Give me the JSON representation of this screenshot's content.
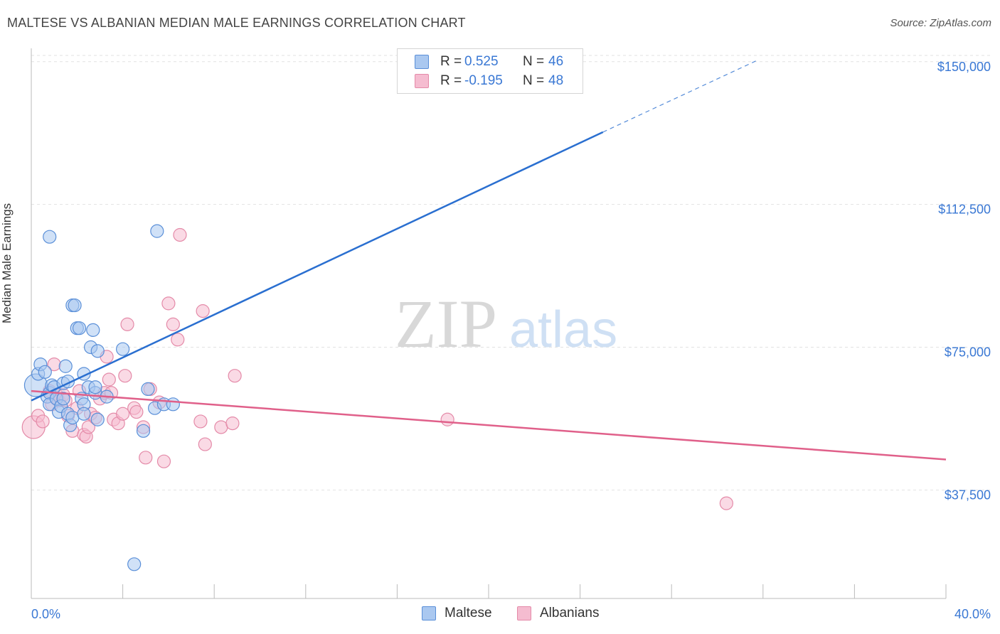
{
  "title": "MALTESE VS ALBANIAN MEDIAN MALE EARNINGS CORRELATION CHART",
  "source": "Source: ZipAtlas.com",
  "legend": {
    "rows": [
      {
        "r_label": "R =",
        "r_value": "0.525",
        "n_label": "N =",
        "n_value": "46"
      },
      {
        "r_label": "R =",
        "r_value": "-0.195",
        "n_label": "N =",
        "n_value": "48"
      }
    ]
  },
  "bottom_legend": [
    "Maltese",
    "Albanians"
  ],
  "watermark": {
    "part1": "ZIP",
    "part2": "atlas"
  },
  "colors": {
    "maltese_fill": "#aac8f0",
    "maltese_stroke": "#5a8fd8",
    "maltese_line": "#2a6fd0",
    "albanian_fill": "#f5bcd0",
    "albanian_stroke": "#e48aa8",
    "albanian_line": "#e0608a",
    "tick_label": "#3a78d4",
    "grid": "#e2e2e2"
  },
  "chart_data": {
    "type": "scatter",
    "title": "MALTESE VS ALBANIAN MEDIAN MALE EARNINGS CORRELATION CHART",
    "xlabel": "",
    "ylabel": "Median Male Earnings",
    "x_tick_labels": [
      "0.0%",
      "40.0%"
    ],
    "y_tick_labels": [
      "$37,500",
      "$75,000",
      "$112,500",
      "$150,000"
    ],
    "xlim": [
      0,
      40
    ],
    "ylim": [
      9000,
      155000
    ],
    "y_ticks": [
      37500,
      75000,
      112500,
      150000
    ],
    "series": [
      {
        "name": "Maltese",
        "R": 0.525,
        "N": 46,
        "trend": {
          "x0": 0,
          "y0": 61000,
          "x1": 25,
          "y1": 131500,
          "dash_to_x": 31.8,
          "dash_to_y": 150500
        },
        "points": [
          [
            0.2,
            65000,
            "large"
          ],
          [
            0.3,
            68000
          ],
          [
            0.4,
            70500
          ],
          [
            0.6,
            68500
          ],
          [
            0.7,
            62000
          ],
          [
            0.8,
            63000
          ],
          [
            0.8,
            60000
          ],
          [
            0.9,
            65000
          ],
          [
            1.0,
            64500
          ],
          [
            1.1,
            61500
          ],
          [
            1.2,
            58000
          ],
          [
            1.3,
            59500
          ],
          [
            1.4,
            65500
          ],
          [
            1.4,
            61500
          ],
          [
            1.5,
            70000
          ],
          [
            1.6,
            57500
          ],
          [
            1.6,
            66000
          ],
          [
            1.7,
            54500
          ],
          [
            1.8,
            86000
          ],
          [
            1.8,
            56500
          ],
          [
            1.9,
            86000
          ],
          [
            2.0,
            80000
          ],
          [
            2.1,
            80000
          ],
          [
            2.2,
            61500
          ],
          [
            2.3,
            60000
          ],
          [
            2.3,
            57500
          ],
          [
            2.3,
            68000
          ],
          [
            2.5,
            64500
          ],
          [
            2.6,
            75000
          ],
          [
            2.7,
            79500
          ],
          [
            2.8,
            63000
          ],
          [
            2.8,
            64500
          ],
          [
            2.9,
            74000
          ],
          [
            2.9,
            56000
          ],
          [
            3.3,
            62000
          ],
          [
            4.0,
            74500
          ],
          [
            4.9,
            53000
          ],
          [
            5.1,
            64000
          ],
          [
            5.4,
            59000
          ],
          [
            5.5,
            105500
          ],
          [
            5.8,
            60000
          ],
          [
            6.2,
            60000
          ],
          [
            0.8,
            104000
          ],
          [
            4.5,
            18000
          ],
          [
            21.2,
            143500
          ],
          [
            21.8,
            143500
          ]
        ]
      },
      {
        "name": "Albanians",
        "R": -0.195,
        "N": 48,
        "trend": {
          "x0": 0,
          "y0": 63500,
          "x1": 40,
          "y1": 45500
        },
        "points": [
          [
            0.1,
            54000,
            "large"
          ],
          [
            0.3,
            57000
          ],
          [
            0.5,
            55500
          ],
          [
            0.8,
            63500
          ],
          [
            0.9,
            60000
          ],
          [
            1.0,
            70500
          ],
          [
            1.1,
            62500
          ],
          [
            1.2,
            61000
          ],
          [
            1.4,
            62500
          ],
          [
            1.5,
            61000
          ],
          [
            1.6,
            57000
          ],
          [
            1.8,
            53000
          ],
          [
            2.0,
            59000
          ],
          [
            2.1,
            63500
          ],
          [
            2.3,
            52000
          ],
          [
            2.4,
            51500
          ],
          [
            2.5,
            54000
          ],
          [
            2.6,
            57500
          ],
          [
            2.8,
            56500
          ],
          [
            3.0,
            61500
          ],
          [
            3.2,
            63000
          ],
          [
            3.3,
            72500
          ],
          [
            3.4,
            66500
          ],
          [
            3.5,
            63000
          ],
          [
            3.6,
            56000
          ],
          [
            3.8,
            55000
          ],
          [
            4.0,
            57500
          ],
          [
            4.1,
            67500
          ],
          [
            4.2,
            81000
          ],
          [
            4.5,
            59000
          ],
          [
            4.6,
            58000
          ],
          [
            4.9,
            54000
          ],
          [
            5.0,
            46000
          ],
          [
            5.2,
            64000
          ],
          [
            5.6,
            60500
          ],
          [
            5.8,
            45000
          ],
          [
            6.0,
            86500
          ],
          [
            6.2,
            81000
          ],
          [
            6.4,
            77000
          ],
          [
            6.5,
            104500
          ],
          [
            7.4,
            55500
          ],
          [
            7.5,
            84500
          ],
          [
            7.6,
            49500
          ],
          [
            8.3,
            54000
          ],
          [
            8.8,
            55000
          ],
          [
            8.9,
            67500
          ],
          [
            18.2,
            56000
          ],
          [
            30.4,
            34000
          ]
        ]
      }
    ]
  }
}
